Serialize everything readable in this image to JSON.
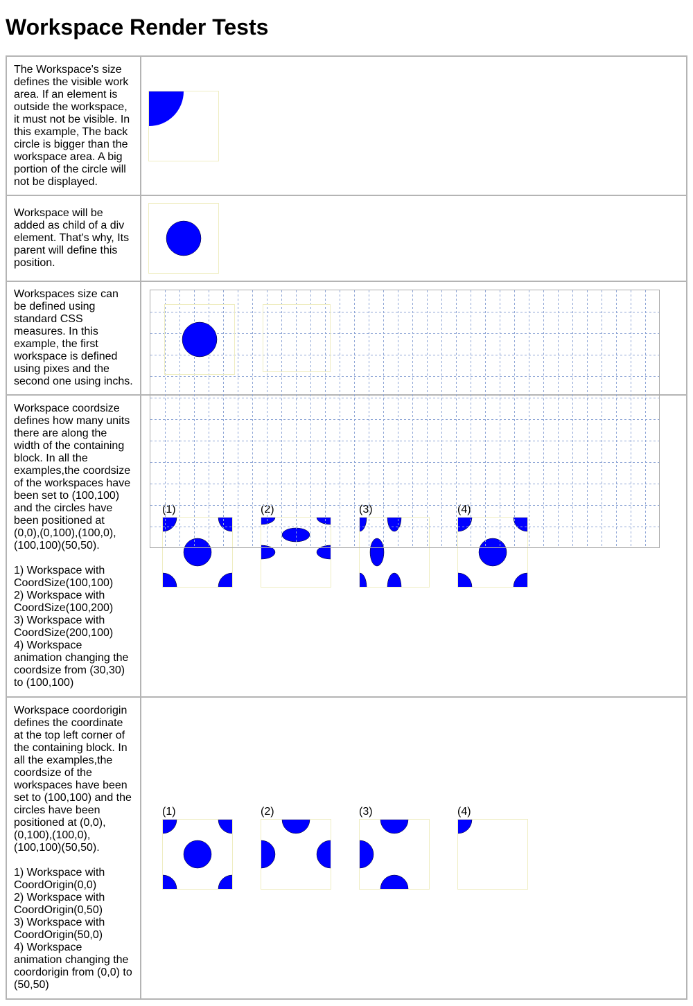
{
  "page": {
    "title": "Workspace Render Tests"
  },
  "colors": {
    "circle_fill": "#0000ff",
    "circle_stroke": "#000000",
    "workspace_border": "#efedc2",
    "grid_line": "#8fa6d6",
    "table_border": "#b4b4b4"
  },
  "rows": [
    {
      "description": "The Workspace's size defines the visible work area. If an element is outside the workspace, it must not be visible. In this example, The back circle is bigger than the workspace area. A big portion of the circle will not be displayed."
    },
    {
      "description": "Workspace will be added as child of a div element. That's why, Its parent will define this position."
    },
    {
      "description": "Workspaces size can be defined using standard CSS measures. In this example, the first workspace is defined using pixes and the second one using inchs."
    },
    {
      "description": "Workspace coordsize defines how many units there are along the width of the containing block. In all the examples,the coordsize of the workspaces have been set to (100,100) and the circles have been positioned at (0,0),(0,100),(100,0),(100,100)(50,50).\n\n1) Workspace with CoordSize(100,100)\n2) Workspace with CoordSize(100,200)\n3) Workspace with CoordSize(200,100)\n4) Workspace animation changing the coordsize from (30,30) to (100,100)",
      "labels": [
        "(1)",
        "(2)",
        "(3)",
        "(4)"
      ]
    },
    {
      "description": "Workspace coordorigin defines the coordinate at the top left corner of the containing block. In all the examples,the coordsize of the workspaces have been set to (100,100) and the circles have been positioned at (0,0),(0,100),(100,0),(100,100)(50,50).\n\n1) Workspace with CoordOrigin(0,0)\n2) Workspace with CoordOrigin(0,50)\n3) Workspace with CoordOrigin(50,0)\n4) Workspace animation changing the coordorigin from (0,0) to (50,50)",
      "labels": [
        "(1)",
        "(2)",
        "(3)",
        "(4)"
      ]
    }
  ]
}
